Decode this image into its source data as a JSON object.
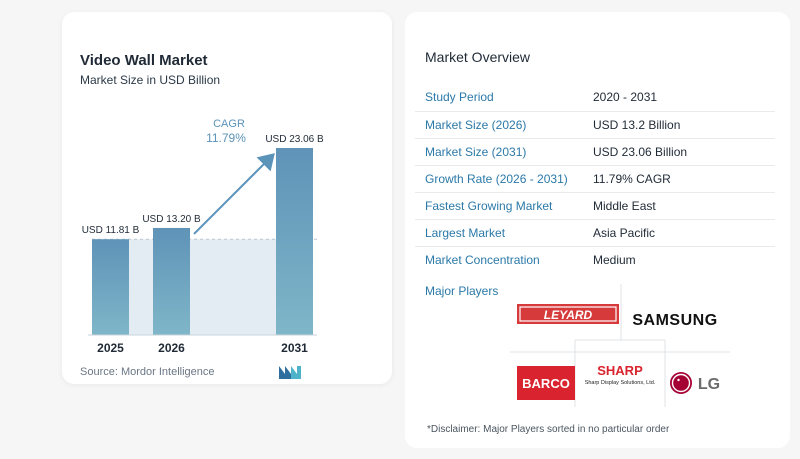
{
  "chart": {
    "title": "Video Wall Market",
    "subtitle": "Market Size in USD Billion",
    "source": "Source:  Mordor Intelligence",
    "cagr_label": "CAGR",
    "cagr_value": "11.79%"
  },
  "chart_data": {
    "type": "bar",
    "categories": [
      "2025",
      "2026",
      "2031"
    ],
    "values": [
      11.81,
      13.2,
      23.06
    ],
    "data_labels": [
      "USD 11.81 B",
      "USD 13.20 B",
      "USD 23.06 B"
    ],
    "title": "Video Wall Market",
    "subtitle": "Market Size in USD Billion",
    "xlabel": "",
    "ylabel": "",
    "grid": false,
    "annotation": "CAGR 11.79%",
    "colors": {
      "bar_top": "#5f93b8",
      "bar_bottom": "#7fb6c8",
      "area": "#e3ecf3",
      "arrow": "#5b93b9",
      "cagr_text": "#5b93b9"
    }
  },
  "overview": {
    "title": "Market Overview",
    "rows": [
      {
        "key": "Study Period",
        "value": "2020 - 2031"
      },
      {
        "key": "Market Size (2026)",
        "value": "USD 13.2 Billion"
      },
      {
        "key": "Market Size (2031)",
        "value": "USD 23.06 Billion"
      },
      {
        "key": "Growth Rate (2026 - 2031)",
        "value": "11.79% CAGR"
      },
      {
        "key": "Fastest Growing Market",
        "value": "Middle East"
      },
      {
        "key": "Largest Market",
        "value": "Asia Pacific"
      },
      {
        "key": "Market Concentration",
        "value": "Medium"
      }
    ]
  },
  "players": {
    "title": "Major Players",
    "logos": {
      "leyard": "LEYARD",
      "samsung": "SAMSUNG",
      "barco": "BARCO",
      "sharp": "SHARP",
      "sharp_sub": "Sharp Display Solutions, Ltd.",
      "lg": "LG"
    }
  },
  "disclaimer": "*Disclaimer: Major Players sorted in no particular order"
}
